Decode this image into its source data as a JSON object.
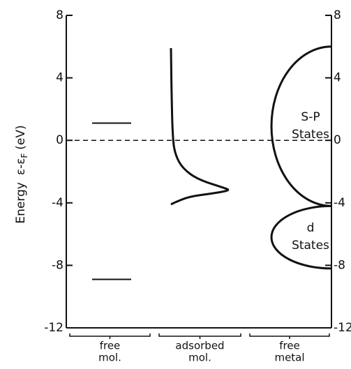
{
  "chart_data": {
    "type": "energy-diagram",
    "ylabel": {
      "main": "Energy",
      "symbol": "ε-ε",
      "subscript": "F",
      "unit": "(eV)"
    },
    "ylim": [
      -12,
      8
    ],
    "yticks": [
      8,
      4,
      0,
      -4,
      -8,
      -12
    ],
    "y2lim": [
      -12,
      8
    ],
    "y2ticks": [
      8,
      4,
      0,
      -4,
      -8,
      -12
    ],
    "categories": [
      [
        "free",
        "mol."
      ],
      [
        "adsorbed",
        "mol."
      ],
      [
        "free",
        "metal"
      ]
    ],
    "fermi_level": 0,
    "free_levels": [
      1.1,
      -8.9
    ],
    "adsorbed_dos": {
      "dos": [
        0,
        0.01,
        0.03,
        0.08,
        0.2,
        0.45,
        0.9,
        1,
        0.7,
        0.3,
        0.05,
        0
      ],
      "energy": [
        5.9,
        3,
        0,
        -1,
        -1.8,
        -2.5,
        -3.05,
        -3.2,
        -3.4,
        -3.6,
        -4.0,
        -4.1
      ]
    },
    "bands": [
      {
        "name": [
          "S-P",
          "States"
        ],
        "top": 6,
        "bottom": -4.2
      },
      {
        "name": [
          "d",
          "States"
        ],
        "top": -4.2,
        "bottom": -8.2
      }
    ],
    "color": "#111111"
  }
}
